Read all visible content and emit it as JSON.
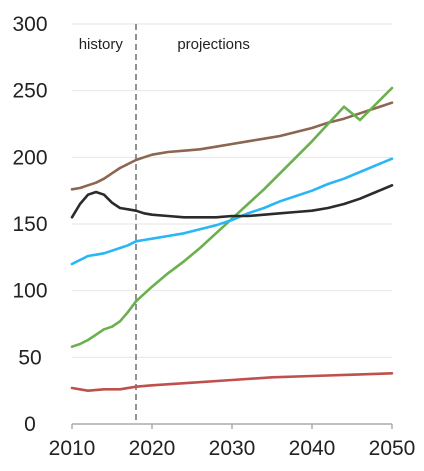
{
  "chart_data": {
    "type": "line",
    "title": "",
    "xlabel": "",
    "ylabel": "",
    "xlim": [
      2010,
      2050
    ],
    "ylim": [
      0,
      300
    ],
    "x_ticks": [
      "2010",
      "2020",
      "2030",
      "2040",
      "2050"
    ],
    "y_ticks": [
      "0",
      "50",
      "100",
      "150",
      "200",
      "250",
      "300"
    ],
    "grid": "horizontal",
    "divider_x": 2018,
    "annotations": [
      {
        "text": "history",
        "x": 2013.6
      },
      {
        "text": "projections",
        "x": 2027.7
      }
    ],
    "series": [
      {
        "color": "#8c6650",
        "x": [
          2010,
          2011,
          2012,
          2013,
          2014,
          2015,
          2016,
          2017,
          2018,
          2019,
          2020,
          2022,
          2024,
          2026,
          2028,
          2030,
          2032,
          2034,
          2036,
          2038,
          2040,
          2042,
          2044,
          2046,
          2048,
          2050
        ],
        "y": [
          176,
          177,
          179,
          181,
          184,
          188,
          192,
          195,
          198,
          200,
          202,
          204,
          205,
          206,
          208,
          210,
          212,
          214,
          216,
          219,
          222,
          226,
          229,
          233,
          237,
          241
        ]
      },
      {
        "color": "#6ab04c",
        "x": [
          2010,
          2011,
          2012,
          2013,
          2014,
          2015,
          2016,
          2017,
          2018,
          2020,
          2022,
          2024,
          2026,
          2028,
          2030,
          2032,
          2034,
          2036,
          2038,
          2040,
          2042,
          2044,
          2046,
          2048,
          2050
        ],
        "y": [
          58,
          60,
          63,
          67,
          71,
          73,
          77,
          84,
          92,
          103,
          113,
          122,
          132,
          143,
          154,
          165,
          176,
          188,
          200,
          212,
          225,
          238,
          228,
          240,
          252
        ]
      },
      {
        "color": "#29b6f6",
        "x": [
          2010,
          2011,
          2012,
          2013,
          2014,
          2015,
          2016,
          2017,
          2018,
          2019,
          2020,
          2022,
          2024,
          2026,
          2028,
          2030,
          2032,
          2034,
          2036,
          2038,
          2040,
          2042,
          2044,
          2046,
          2048,
          2050
        ],
        "y": [
          120,
          123,
          126,
          127,
          128,
          130,
          132,
          134,
          137,
          138,
          139,
          141,
          143,
          146,
          149,
          153,
          158,
          162,
          167,
          171,
          175,
          180,
          184,
          189,
          194,
          199
        ]
      },
      {
        "color": "#2b2b2b",
        "x": [
          2010,
          2011,
          2012,
          2013,
          2014,
          2015,
          2016,
          2017,
          2018,
          2019,
          2020,
          2022,
          2024,
          2026,
          2028,
          2030,
          2032,
          2034,
          2036,
          2038,
          2040,
          2042,
          2044,
          2046,
          2048,
          2050
        ],
        "y": [
          155,
          165,
          172,
          174,
          172,
          166,
          162,
          161,
          160,
          158,
          157,
          156,
          155,
          155,
          155,
          156,
          156,
          157,
          158,
          159,
          160,
          162,
          165,
          169,
          174,
          179
        ]
      },
      {
        "color": "#c0504d",
        "x": [
          2010,
          2012,
          2014,
          2016,
          2018,
          2020,
          2025,
          2030,
          2035,
          2040,
          2045,
          2050
        ],
        "y": [
          27,
          25,
          26,
          26,
          28,
          29,
          31,
          33,
          35,
          36,
          37,
          38
        ]
      }
    ]
  }
}
